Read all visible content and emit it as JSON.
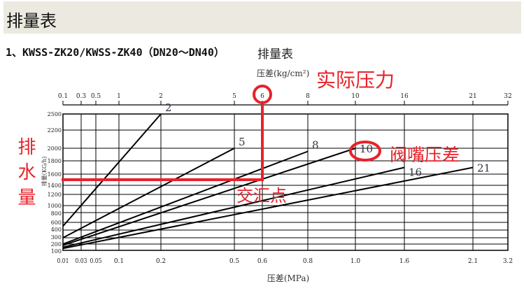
{
  "header": {
    "title": "排量表"
  },
  "section": {
    "heading": "1、KWSS-ZK20/KWSS-ZK40（DN20～DN40）"
  },
  "chart_data": {
    "type": "line",
    "title": "排量表",
    "top_axis_label": "压差(kg/cm²)",
    "top_ticks": [
      "0.1",
      "0.3",
      "0.5",
      "1",
      "2",
      "5",
      "6",
      "8",
      "10",
      "16",
      "21",
      "32"
    ],
    "xlabel": "压差(MPa)",
    "x_ticks": [
      0.01,
      0.03,
      0.05,
      0.1,
      0.2,
      0.5,
      0.6,
      0.8,
      1.0,
      1.6,
      2.1,
      3.2
    ],
    "x_tick_labels": [
      "0.01",
      "0.03",
      "0.05",
      "0.1",
      "0.2",
      "0.5",
      "0.6",
      "0.8",
      "1.0",
      "1.6",
      "2.1",
      "3.2"
    ],
    "ylabel": "排量(KG/h)",
    "y_ticks": [
      100,
      200,
      300,
      400,
      600,
      800,
      1000,
      1200,
      1400,
      1600,
      1800,
      2000,
      2200,
      2500
    ],
    "ylim": [
      100,
      2500
    ],
    "grid": true,
    "series": [
      {
        "name": "2",
        "points": [
          [
            0.01,
            500
          ],
          [
            0.2,
            2500
          ]
        ]
      },
      {
        "name": "5",
        "points": [
          [
            0.01,
            300
          ],
          [
            0.5,
            2000
          ]
        ]
      },
      {
        "name": "8",
        "points": [
          [
            0.01,
            200
          ],
          [
            0.8,
            1950
          ]
        ]
      },
      {
        "name": "10",
        "points": [
          [
            0.01,
            180
          ],
          [
            1.0,
            2000
          ]
        ]
      },
      {
        "name": "16",
        "points": [
          [
            0.01,
            150
          ],
          [
            1.6,
            1700
          ]
        ]
      },
      {
        "name": "21",
        "points": [
          [
            0.01,
            130
          ],
          [
            2.1,
            1700
          ]
        ]
      }
    ],
    "annotations": {
      "pressure_label": "实际压力",
      "nozzle_label": "阀嘴压差",
      "intersection_label": "交汇点",
      "flow_label": "排水量",
      "pressure_value": 0.6,
      "flow_value": 1500,
      "color": "#e8222a"
    }
  }
}
